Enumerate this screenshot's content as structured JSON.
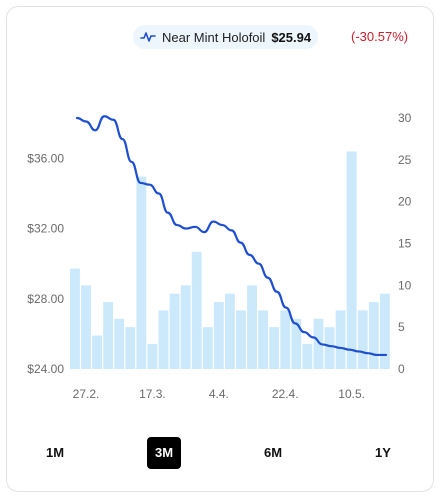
{
  "legend": {
    "icon": "pulse-line-icon",
    "name": "Near Mint Holofoil",
    "price": "$25.94",
    "change": "(-30.57%)"
  },
  "colors": {
    "line": "#1f4fd1",
    "bars": "#cce9fb",
    "negative": "#c8202a",
    "active_button": "#000000"
  },
  "range_buttons": [
    {
      "label": "1M",
      "active": false
    },
    {
      "label": "3M",
      "active": true
    },
    {
      "label": "6M",
      "active": false
    },
    {
      "label": "1Y",
      "active": false
    }
  ],
  "chart_data": {
    "type": "line+bar",
    "title": "",
    "xlabel": "",
    "ylabel": "",
    "ylim_left": [
      24,
      38.3
    ],
    "ylim_right": [
      0,
      30
    ],
    "left_ticks": [
      "$24.00",
      "$28.00",
      "$32.00",
      "$36.00"
    ],
    "left_tick_values": [
      24,
      28,
      32,
      36
    ],
    "right_ticks": [
      "0",
      "5",
      "10",
      "15",
      "20",
      "25",
      "30"
    ],
    "right_tick_values": [
      0,
      5,
      10,
      15,
      20,
      25,
      30
    ],
    "x_ticks": [
      "27.2.",
      "17.3.",
      "4.4.",
      "22.4.",
      "10.5."
    ],
    "x_tick_index": [
      1,
      7,
      13,
      19,
      25
    ],
    "series": [
      {
        "name": "Near Mint Holofoil",
        "kind": "line",
        "axis": "left",
        "values": [
          38.3,
          38.1,
          37.6,
          38.4,
          38.2,
          37.1,
          35.8,
          34.6,
          34.5,
          34.0,
          32.9,
          32.2,
          32.0,
          32.1,
          31.8,
          32.4,
          32.2,
          31.9,
          31.2,
          30.5,
          30.0,
          29.2,
          28.4,
          27.5,
          26.6,
          26.1,
          25.8,
          25.4,
          25.3,
          25.2,
          25.1,
          25.0,
          24.9,
          24.8,
          24.8
        ]
      },
      {
        "name": "",
        "kind": "bar",
        "axis": "right",
        "values": [
          12,
          10,
          4,
          8,
          6,
          5,
          23,
          3,
          7,
          9,
          10,
          14,
          5,
          8,
          9,
          7,
          10,
          7,
          5,
          7,
          6,
          3,
          6,
          5,
          7,
          26,
          7,
          8,
          9
        ]
      }
    ],
    "grid": false,
    "legend_position": "top"
  }
}
